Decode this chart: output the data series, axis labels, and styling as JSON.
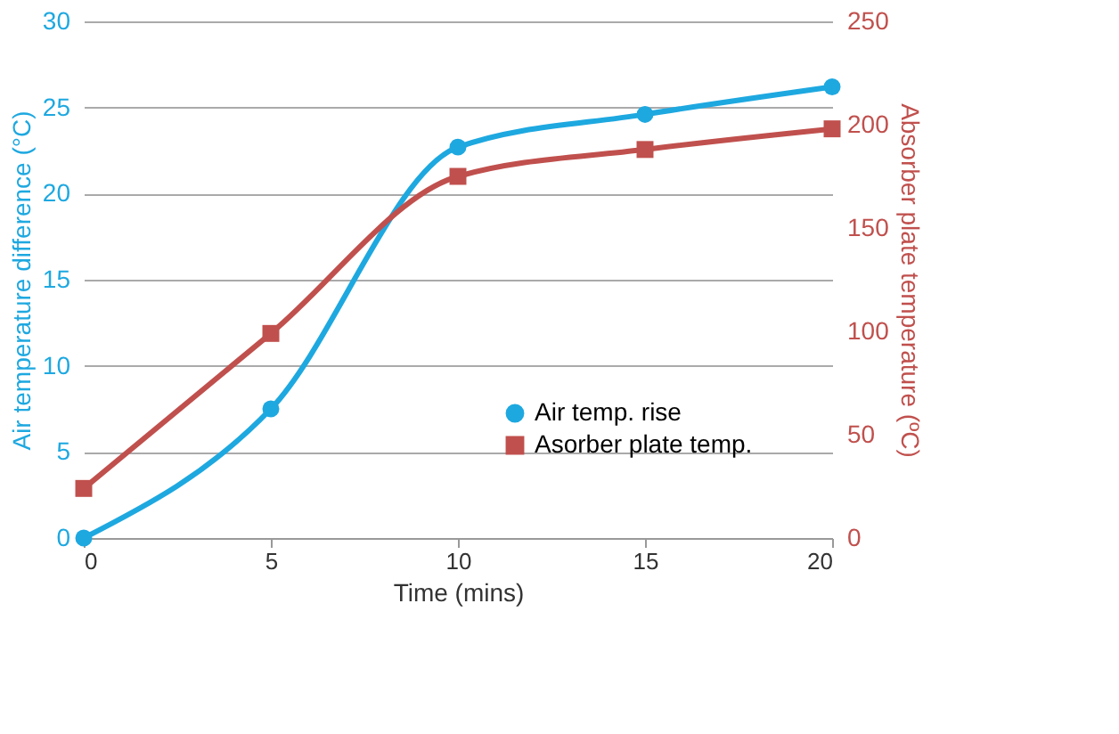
{
  "chart_data": {
    "type": "line",
    "xlabel": "Time (mins)",
    "ylabel": "Air temperature difference (°C)",
    "y2label": "Absorber plate temperature (ºC)",
    "x": [
      0,
      5,
      10,
      15,
      20
    ],
    "xlim": [
      0,
      20
    ],
    "xticks": [
      0,
      5,
      10,
      15,
      20
    ],
    "ylim": [
      0,
      30
    ],
    "yticks": [
      0,
      5,
      10,
      15,
      20,
      25,
      30
    ],
    "y2lim": [
      0,
      250
    ],
    "y2ticks": [
      0,
      50,
      100,
      150,
      200,
      250
    ],
    "grid": "y",
    "legend": "bottom right",
    "series": [
      {
        "name": "Air temp. rise",
        "color": "#1ea8e0",
        "marker": "circle",
        "values": [
          0,
          7.5,
          22.7,
          24.6,
          26.2
        ]
      },
      {
        "name": "Asorber plate temp.",
        "color": "#c0504d",
        "marker": "square",
        "axis": "y2",
        "values": [
          24,
          99,
          175,
          188,
          198
        ]
      }
    ]
  }
}
